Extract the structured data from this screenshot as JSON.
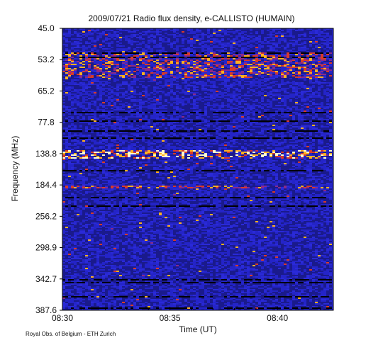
{
  "chart_data": {
    "type": "heatmap",
    "title": "2009/07/21  Radio flux density, e-CALLISTO (HUMAIN)",
    "xlabel": "Time (UT)",
    "ylabel": "Frequency (MHz)",
    "x_ticks": [
      "08:30",
      "08:35",
      "08:40"
    ],
    "x_tick_minutes": [
      0,
      5,
      10
    ],
    "x_range_minutes": [
      0,
      12.6
    ],
    "y_ticks": [
      "45.0",
      "53.2",
      "65.2",
      "77.8",
      "138.8",
      "184.4",
      "256.2",
      "298.9",
      "342.7",
      "387.6"
    ],
    "y_range_mhz": [
      45.0,
      387.6
    ],
    "y_inverted": true,
    "colormap": [
      "#000000",
      "#1a1a8c",
      "#2a2ad8",
      "#8a2a8a",
      "#d83a2a",
      "#ffb020",
      "#ffffcc"
    ],
    "background_color": "#2424c8",
    "features": [
      {
        "freq_band_mhz": [
          51,
          60
        ],
        "intensity": "high",
        "type": "drifting bursts"
      },
      {
        "freq_band_mhz": [
          130,
          145
        ],
        "intensity": "very high",
        "type": "interference band"
      },
      {
        "freq_band_mhz": [
          184,
          190
        ],
        "intensity": "high",
        "type": "interference band"
      }
    ]
  },
  "footer": {
    "credit": "Royal Obs. of Belgium - ETH Zurich"
  }
}
